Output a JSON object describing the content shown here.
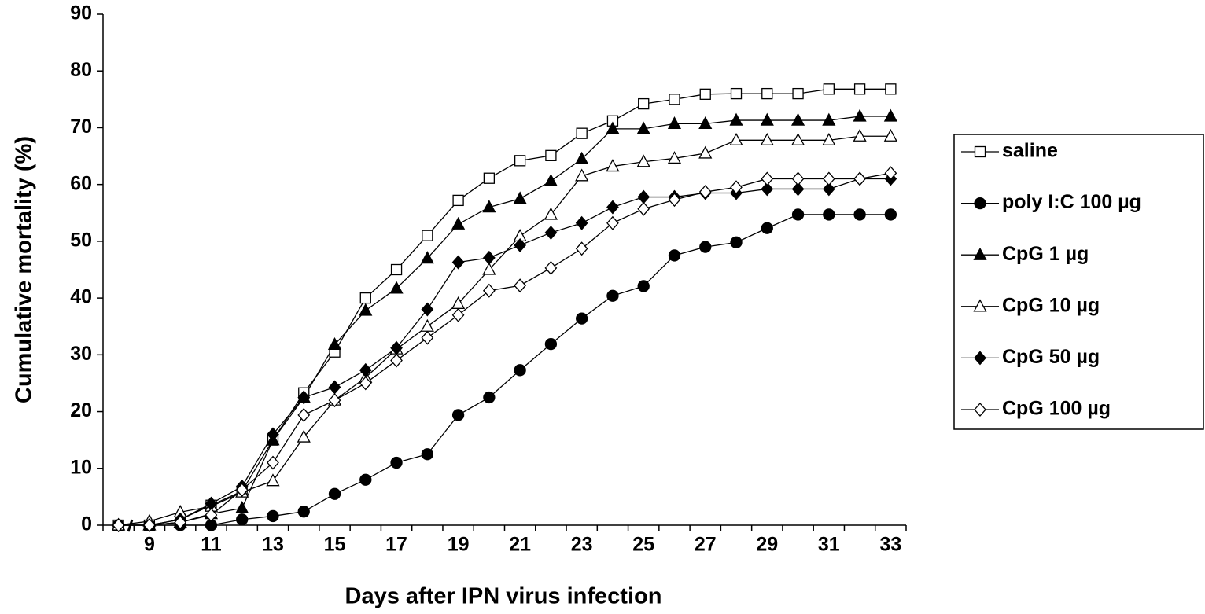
{
  "chart_data": {
    "type": "line",
    "x_label": "Days after IPN virus infection",
    "y_label": "Cumulative mortality (%)",
    "categories": [
      null,
      "9",
      null,
      "11",
      null,
      "13",
      null,
      "15",
      null,
      "17",
      null,
      "19",
      null,
      "21",
      null,
      "23",
      null,
      "25",
      null,
      "27",
      null,
      "29",
      null,
      "31",
      null,
      "33"
    ],
    "ylim": [
      0,
      90
    ],
    "yticks": [
      0,
      10,
      20,
      30,
      40,
      50,
      60,
      70,
      80,
      90
    ],
    "legend": "right",
    "series": [
      {
        "name": "saline",
        "color": "#000000",
        "marker": "square",
        "filled": false,
        "values": [
          0,
          0,
          1,
          3.5,
          6,
          15,
          23.3,
          30.5,
          40,
          45,
          51,
          57.2,
          61.1,
          64.2,
          65.1,
          69,
          71.2,
          74.2,
          75,
          75.9,
          76,
          76,
          76,
          76.8,
          76.8,
          76.8
        ]
      },
      {
        "name": "poly I:C 100 µg",
        "color": "#000000",
        "marker": "circle",
        "filled": true,
        "values": [
          0,
          0,
          0,
          0,
          1,
          1.6,
          2.4,
          5.5,
          8,
          11,
          12.5,
          19.4,
          22.5,
          27.3,
          31.9,
          36.4,
          40.4,
          42.1,
          47.5,
          49,
          49.8,
          52.3,
          54.7,
          54.7,
          54.7,
          54.7
        ]
      },
      {
        "name": "CpG 1 µg",
        "color": "#000000",
        "marker": "triangle",
        "filled": true,
        "values": [
          0,
          0,
          0.5,
          2,
          3,
          15,
          22.5,
          31.8,
          37.8,
          41.7,
          47,
          53,
          56,
          57.5,
          60.6,
          64.5,
          69.8,
          69.8,
          70.7,
          70.7,
          71.3,
          71.3,
          71.3,
          71.3,
          72,
          72
        ]
      },
      {
        "name": "CpG 10 µg",
        "color": "#000000",
        "marker": "triangle",
        "filled": false,
        "values": [
          0,
          0.7,
          2.3,
          3.3,
          5.8,
          7.8,
          15.5,
          22,
          26,
          31,
          35,
          39,
          45,
          50.9,
          54.7,
          61.5,
          63.2,
          64,
          64.6,
          65.5,
          67.8,
          67.8,
          67.8,
          67.8,
          68.5,
          68.5
        ]
      },
      {
        "name": "CpG 50 µg",
        "color": "#000000",
        "marker": "diamond",
        "filled": true,
        "values": [
          0,
          0,
          1,
          3.8,
          6.8,
          16,
          22.5,
          24.3,
          27.3,
          31.2,
          38,
          46.3,
          47.1,
          49.3,
          51.5,
          53.2,
          56,
          57.8,
          57.8,
          58.5,
          58.5,
          59.2,
          59.2,
          59.2,
          61,
          61
        ]
      },
      {
        "name": "CpG 100 µg",
        "color": "#000000",
        "marker": "diamond",
        "filled": false,
        "values": [
          0,
          0,
          0.5,
          1.8,
          6.2,
          11,
          19.4,
          22,
          25,
          29,
          33,
          37,
          41.3,
          42.2,
          45.3,
          48.7,
          53.2,
          55.7,
          57.3,
          58.7,
          59.5,
          61,
          61,
          61,
          61,
          62
        ]
      }
    ]
  }
}
